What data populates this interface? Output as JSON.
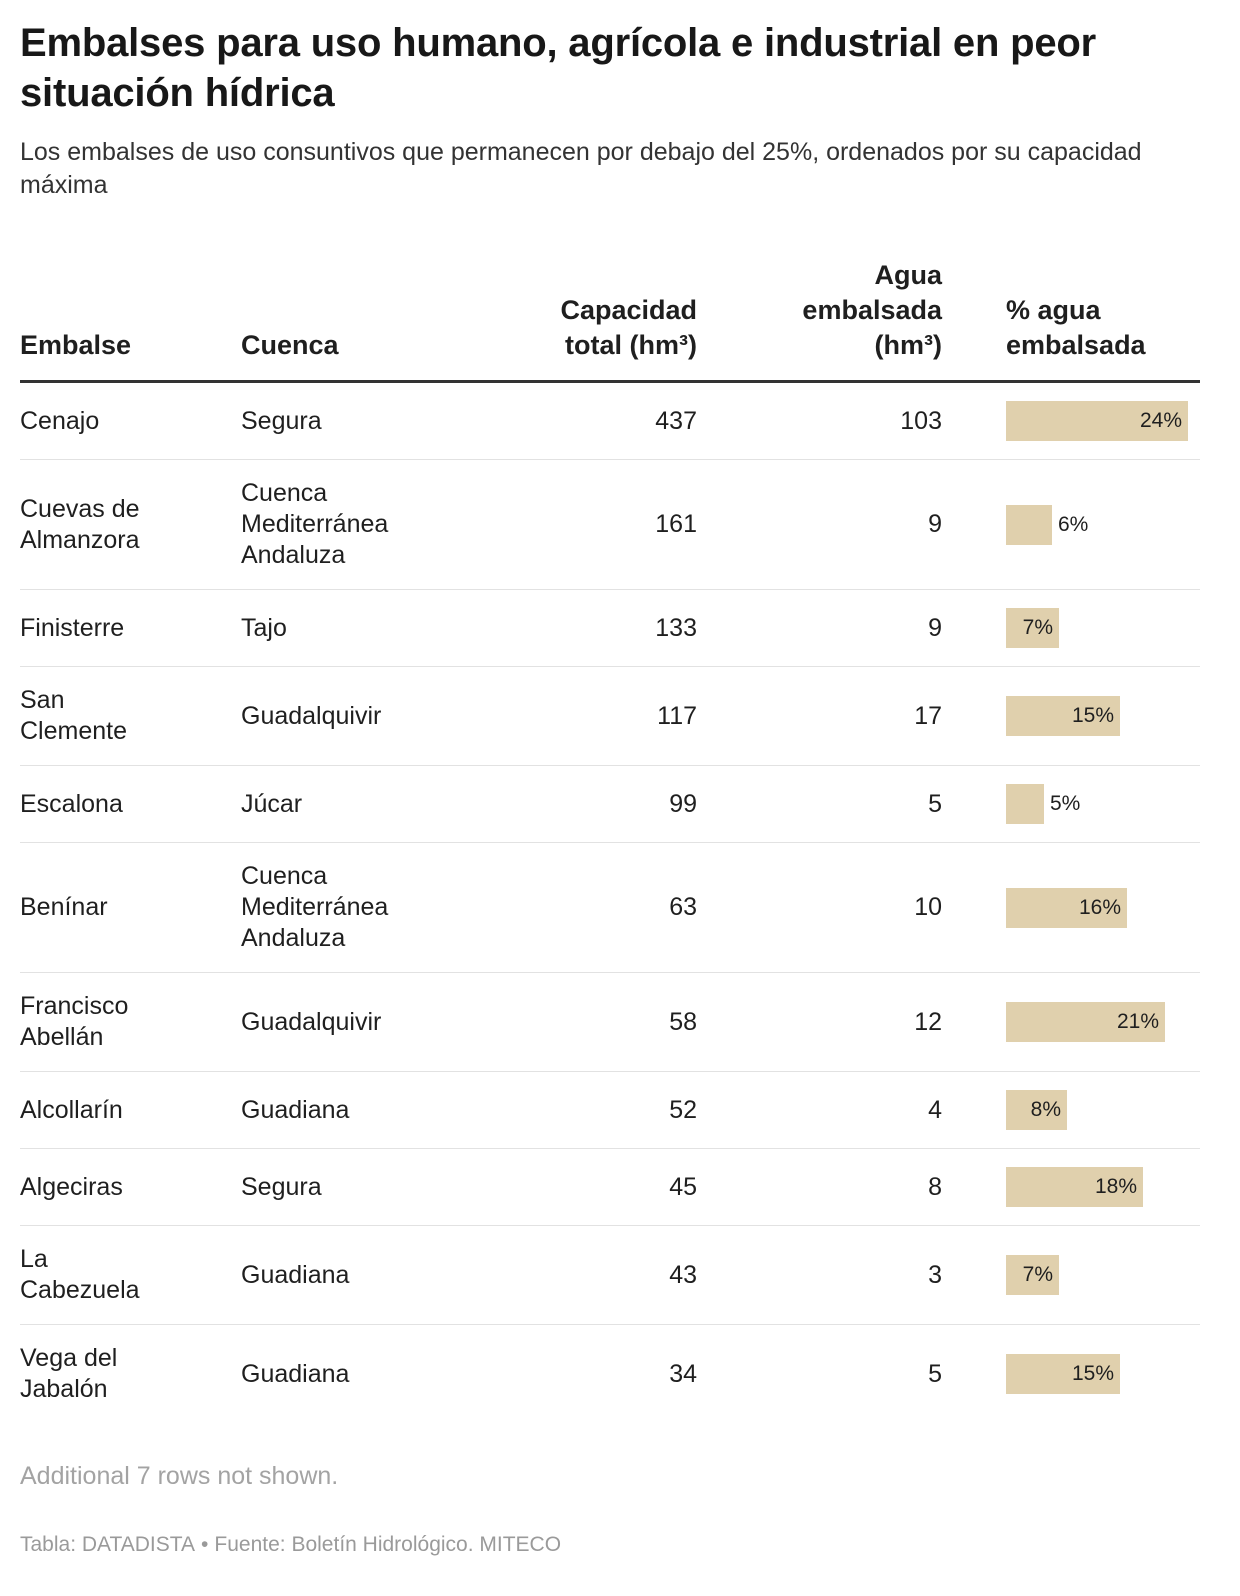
{
  "chart_data": {
    "type": "table",
    "title": "Embalses para uso humano, agrícola e industrial en peor situación hídrica",
    "subtitle": "Los embalses de uso consuntivos que permanecen por debajo del 25%, ordenados por su capacidad máxima",
    "columns": {
      "embalse": "Embalse",
      "cuenca": "Cuenca",
      "capacidad": "Capacidad total (hm³)",
      "agua": "Agua embalsada (hm³)",
      "porcentaje": "% agua embalsada"
    },
    "bar_color": "#e0d0ad",
    "pct_max": 25,
    "rows": [
      {
        "embalse": "Cenajo",
        "cuenca": "Segura",
        "capacidad": "437",
        "agua": "103",
        "pct": 24,
        "pct_label": "24%"
      },
      {
        "embalse": "Cuevas de Almanzora",
        "cuenca": "Cuenca Mediterránea Andaluza",
        "capacidad": "161",
        "agua": "9",
        "pct": 6,
        "pct_label": "6%"
      },
      {
        "embalse": "Finisterre",
        "cuenca": "Tajo",
        "capacidad": "133",
        "agua": "9",
        "pct": 7,
        "pct_label": "7%"
      },
      {
        "embalse": "San Clemente",
        "cuenca": "Guadalquivir",
        "capacidad": "117",
        "agua": "17",
        "pct": 15,
        "pct_label": "15%"
      },
      {
        "embalse": "Escalona",
        "cuenca": "Júcar",
        "capacidad": "99",
        "agua": "5",
        "pct": 5,
        "pct_label": "5%"
      },
      {
        "embalse": "Benínar",
        "cuenca": "Cuenca Mediterránea Andaluza",
        "capacidad": "63",
        "agua": "10",
        "pct": 16,
        "pct_label": "16%"
      },
      {
        "embalse": "Francisco Abellán",
        "cuenca": "Guadalquivir",
        "capacidad": "58",
        "agua": "12",
        "pct": 21,
        "pct_label": "21%"
      },
      {
        "embalse": "Alcollarín",
        "cuenca": "Guadiana",
        "capacidad": "52",
        "agua": "4",
        "pct": 8,
        "pct_label": "8%"
      },
      {
        "embalse": "Algeciras",
        "cuenca": "Segura",
        "capacidad": "45",
        "agua": "8",
        "pct": 18,
        "pct_label": "18%"
      },
      {
        "embalse": "La Cabezuela",
        "cuenca": "Guadiana",
        "capacidad": "43",
        "agua": "3",
        "pct": 7,
        "pct_label": "7%"
      },
      {
        "embalse": "Vega del Jabalón",
        "cuenca": "Guadiana",
        "capacidad": "34",
        "agua": "5",
        "pct": 15,
        "pct_label": "15%"
      }
    ],
    "note": "Additional 7 rows not shown.",
    "source": {
      "tabla": "Tabla: DATADISTA",
      "separator": "•",
      "fuente": "Fuente: Boletín Hidrológico. MITECO"
    }
  }
}
